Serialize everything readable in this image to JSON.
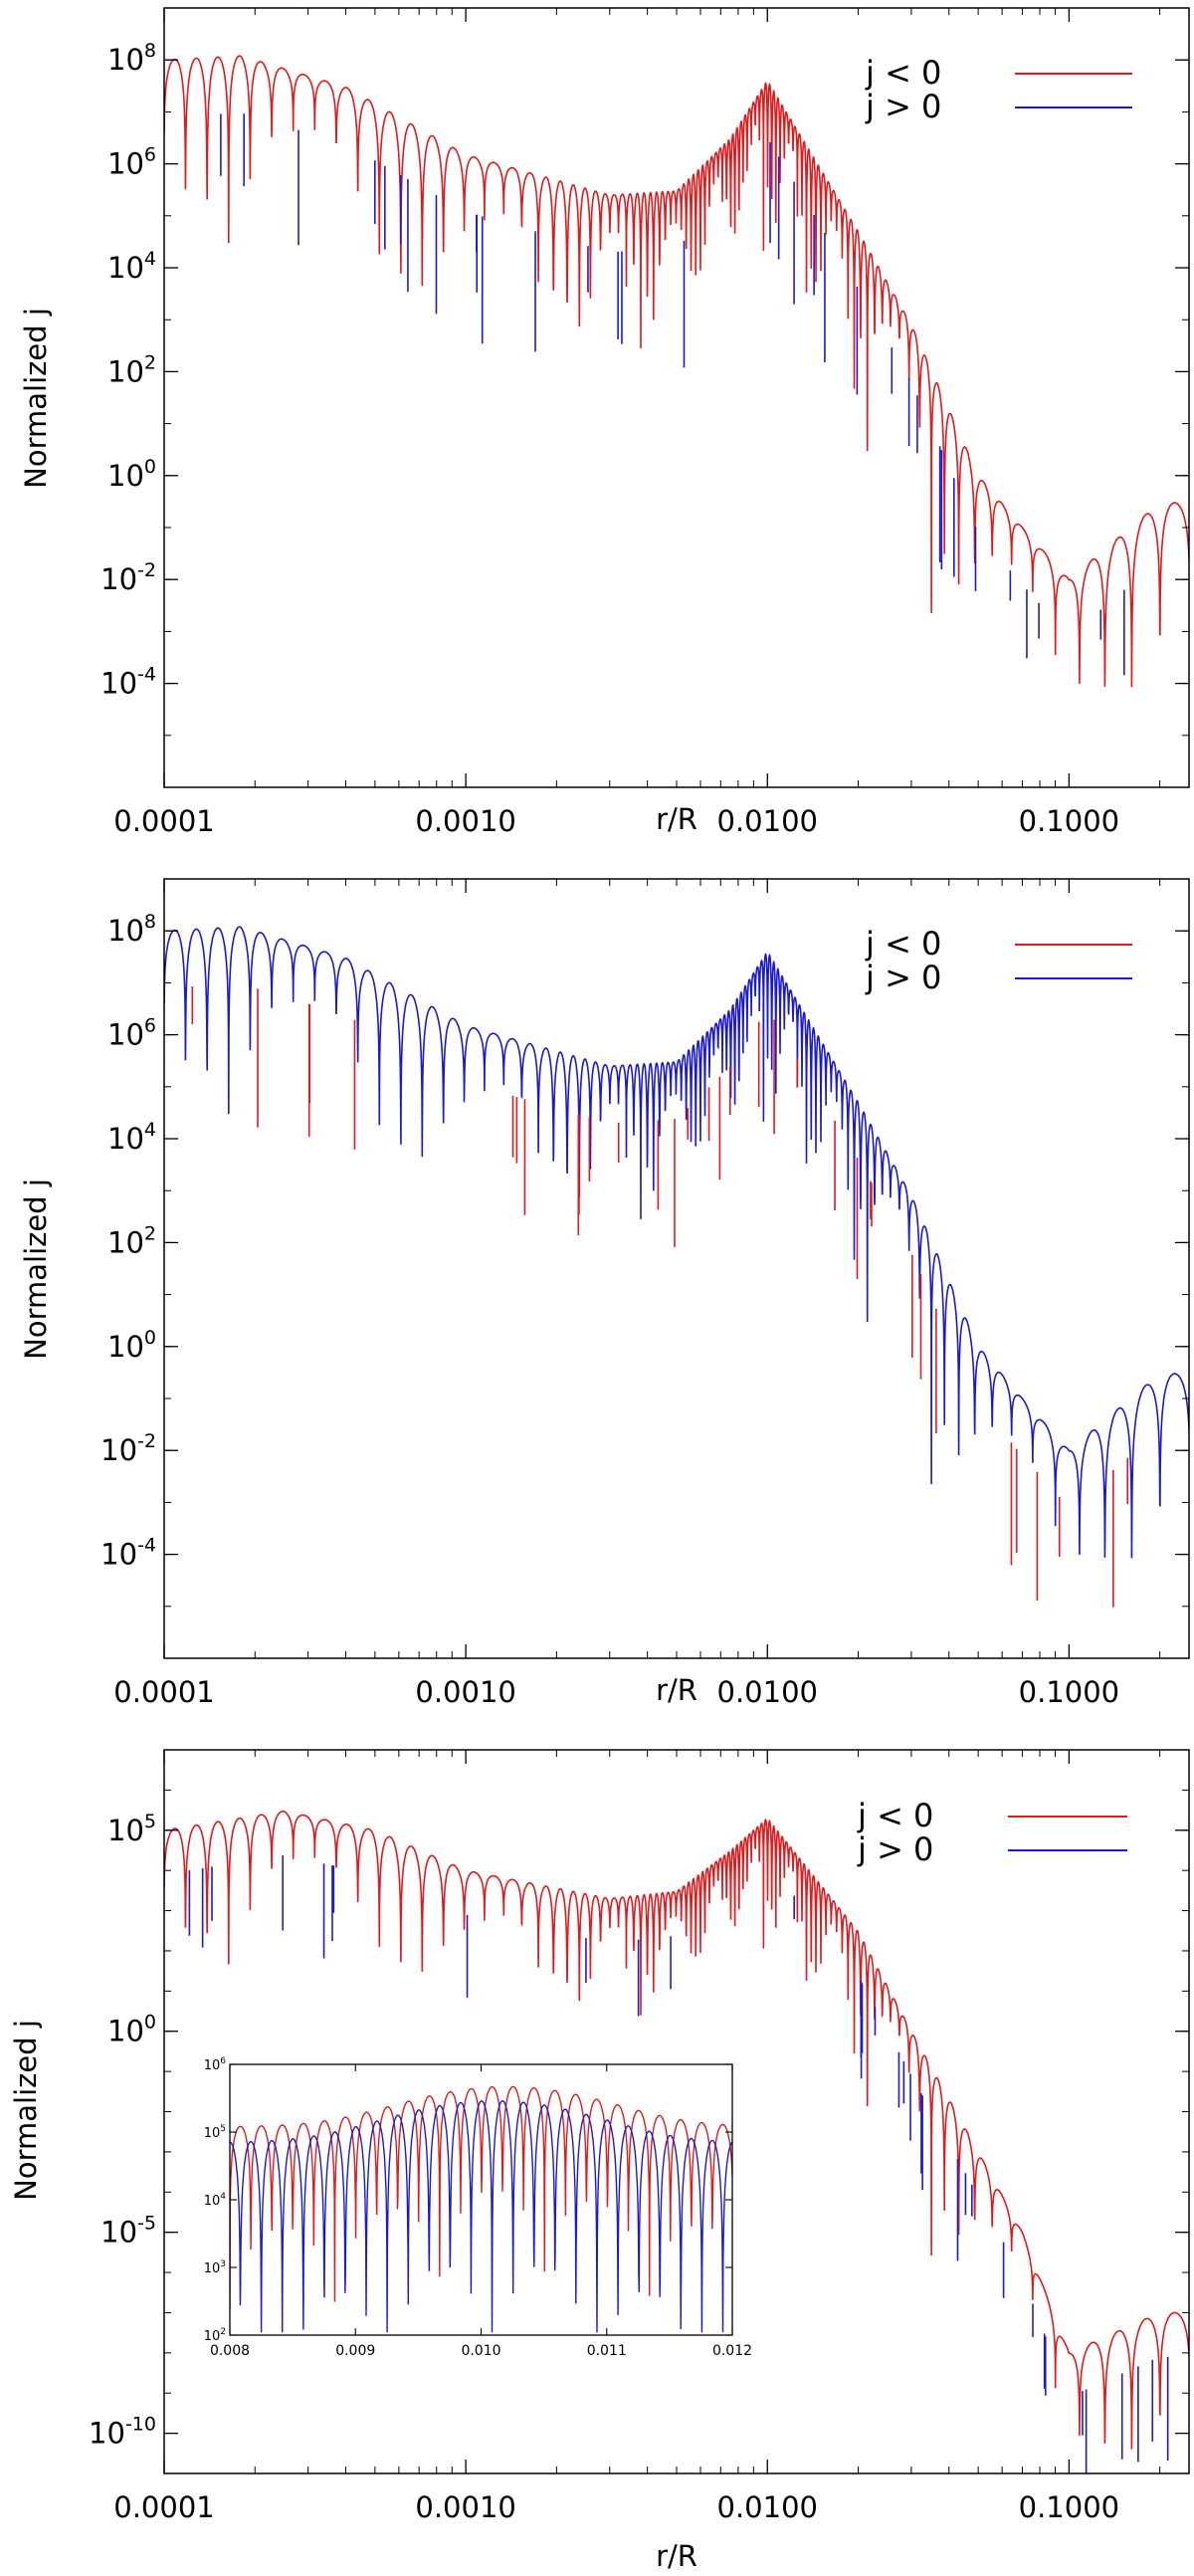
{
  "colors": {
    "negative": "#e31a1c",
    "positive": "#1a1ad6",
    "axis": "#000000"
  },
  "chart_data": [
    {
      "type": "line",
      "title": "",
      "xlabel": "r/R",
      "ylabel": "Normalized j",
      "xscale": "log",
      "yscale": "log",
      "xlim": [
        0.0001,
        0.25
      ],
      "ylim": [
        1e-06,
        1000000000.0
      ],
      "xticks": [
        "0.0001",
        "0.0010",
        "0.0100",
        "0.1000"
      ],
      "yticks": [
        {
          "base": "10",
          "exp": "8"
        },
        {
          "base": "10",
          "exp": "6"
        },
        {
          "base": "10",
          "exp": "4"
        },
        {
          "base": "10",
          "exp": "2"
        },
        {
          "base": "10",
          "exp": "0"
        },
        {
          "base": "10",
          "exp": "-2"
        },
        {
          "base": "10",
          "exp": "-4"
        }
      ],
      "legend": {
        "placement": "top-right",
        "entries": [
          {
            "label": "j < 0",
            "color_key": "negative"
          },
          {
            "label": "j > 0",
            "color_key": "positive"
          }
        ]
      },
      "series": [
        {
          "label": "j < 0",
          "color_key": "negative",
          "x": [
            0.0001,
            0.00018,
            0.0004,
            0.001,
            0.003,
            0.005,
            0.0075,
            0.01,
            0.02,
            0.03,
            0.05,
            0.07,
            0.1,
            0.2
          ],
          "y": [
            100000000.0,
            120000000.0,
            30000000.0,
            1500000.0,
            250000.0,
            300000.0,
            3000000.0,
            40000000.0,
            50000.0,
            800.0,
            1.0,
            0.1,
            0.01,
            0.3
          ]
        }
      ]
    },
    {
      "type": "line",
      "title": "",
      "xlabel": "r/R",
      "ylabel": "Normalized j",
      "xscale": "log",
      "yscale": "log",
      "xlim": [
        0.0001,
        0.25
      ],
      "ylim": [
        1e-06,
        1000000000.0
      ],
      "xticks": [
        "0.0001",
        "0.0010",
        "0.0100",
        "0.1000"
      ],
      "yticks": [
        {
          "base": "10",
          "exp": "8"
        },
        {
          "base": "10",
          "exp": "6"
        },
        {
          "base": "10",
          "exp": "4"
        },
        {
          "base": "10",
          "exp": "2"
        },
        {
          "base": "10",
          "exp": "0"
        },
        {
          "base": "10",
          "exp": "-2"
        },
        {
          "base": "10",
          "exp": "-4"
        }
      ],
      "legend": {
        "placement": "top-right",
        "entries": [
          {
            "label": "j < 0",
            "color_key": "negative"
          },
          {
            "label": "j > 0",
            "color_key": "positive"
          }
        ]
      },
      "series": [
        {
          "label": "j > 0",
          "color_key": "positive",
          "x": [
            0.0001,
            0.00018,
            0.0004,
            0.001,
            0.003,
            0.005,
            0.0075,
            0.01,
            0.02,
            0.03,
            0.05,
            0.07,
            0.1,
            0.2
          ],
          "y": [
            100000000.0,
            120000000.0,
            30000000.0,
            1500000.0,
            250000.0,
            300000.0,
            3000000.0,
            40000000.0,
            50000.0,
            800.0,
            1.0,
            0.1,
            0.01,
            0.3
          ]
        }
      ]
    },
    {
      "type": "line",
      "title": "",
      "xlabel": "r/R",
      "ylabel": "Normalized j",
      "xscale": "log",
      "yscale": "log",
      "xlim": [
        0.0001,
        0.25
      ],
      "ylim": [
        1e-11,
        10000000.0
      ],
      "xticks": [
        "0.0001",
        "0.0010",
        "0.0100",
        "0.1000"
      ],
      "yticks": [
        {
          "base": "10",
          "exp": "5"
        },
        {
          "base": "10",
          "exp": "0"
        },
        {
          "base": "10",
          "exp": "-5"
        },
        {
          "base": "10",
          "exp": "-10"
        }
      ],
      "legend": {
        "placement": "top-right",
        "entries": [
          {
            "label": "j < 0",
            "color_key": "negative"
          },
          {
            "label": "j > 0",
            "color_key": "positive"
          }
        ]
      },
      "series": [
        {
          "label": "j < 0",
          "color_key": "negative",
          "x": [
            0.0001,
            0.00025,
            0.0005,
            0.001,
            0.003,
            0.005,
            0.0075,
            0.01,
            0.02,
            0.03,
            0.05,
            0.07,
            0.1,
            0.2
          ],
          "y": [
            100000.0,
            300000.0,
            100000.0,
            10000.0,
            2000.0,
            3000.0,
            30000.0,
            200000.0,
            300.0,
            1.0,
            0.001,
            1e-05,
            1e-08,
            1e-07
          ]
        }
      ],
      "inset": {
        "xlim": [
          0.008,
          0.012
        ],
        "ylim": [
          100,
          1000000
        ],
        "xticks": [
          "0.008",
          "0.009",
          "0.010",
          "0.011",
          "0.012"
        ],
        "yticks": [
          {
            "base": "10",
            "exp": "6"
          },
          {
            "base": "10",
            "exp": "5"
          },
          {
            "base": "10",
            "exp": "4"
          },
          {
            "base": "10",
            "exp": "3"
          },
          {
            "base": "10",
            "exp": "2"
          }
        ]
      }
    }
  ]
}
